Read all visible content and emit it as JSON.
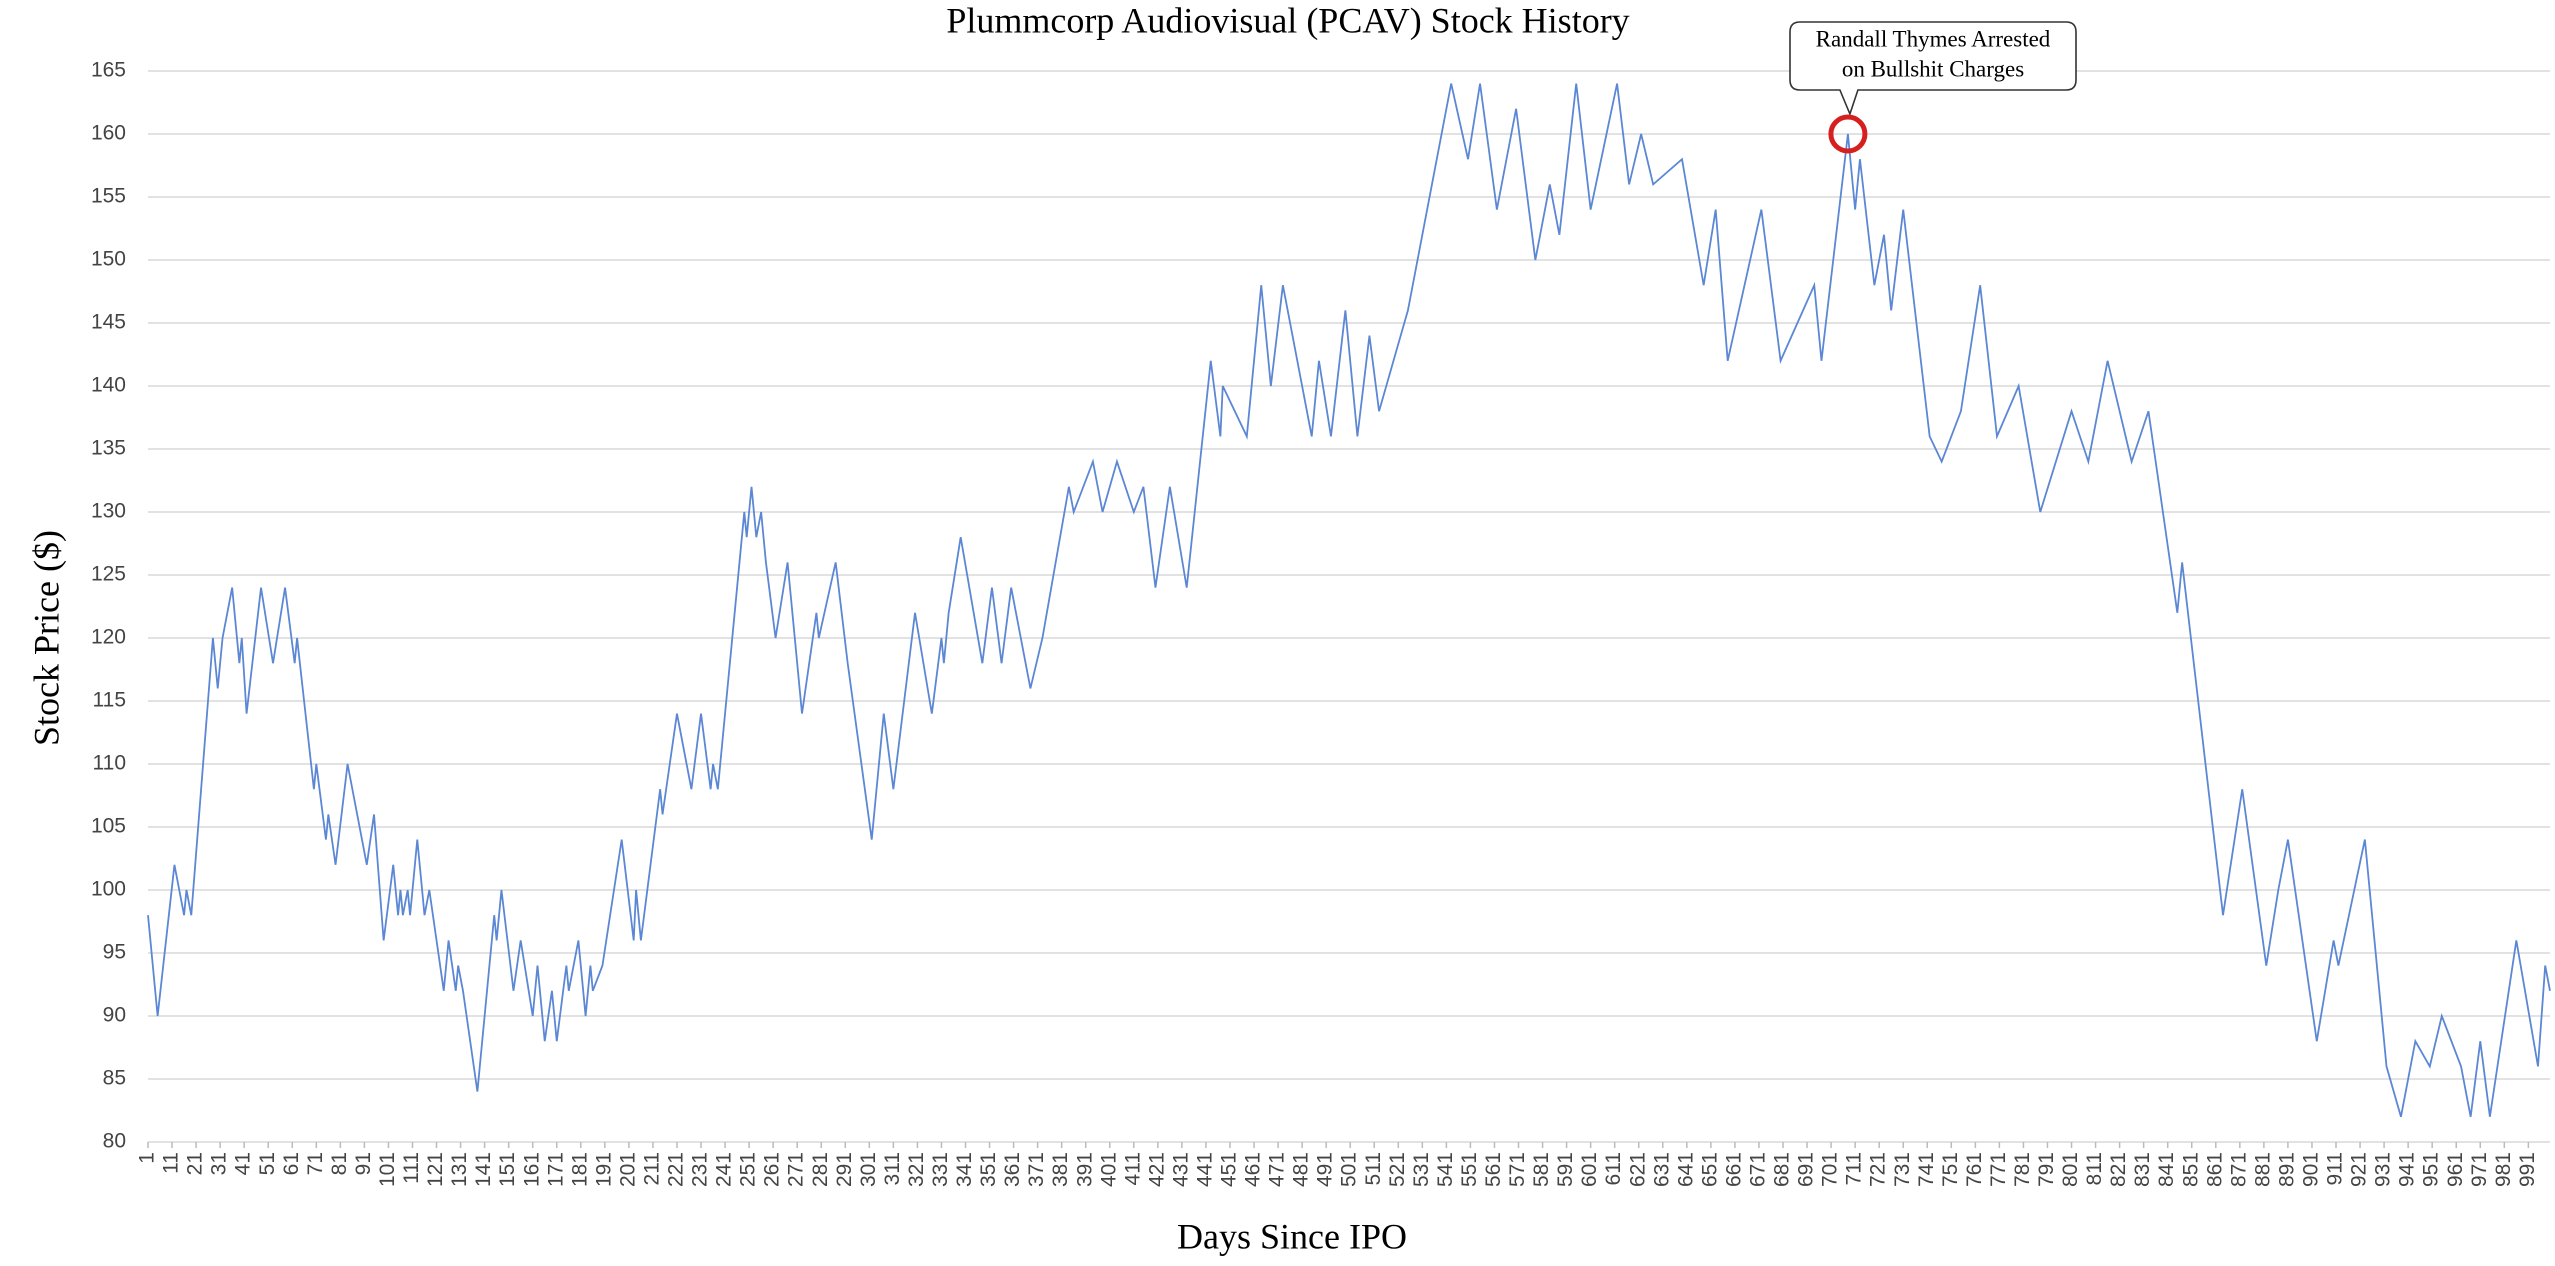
{
  "chart_data": {
    "type": "line",
    "title": "Plummcorp Audiovisual (PCAV) Stock History",
    "x_label": "Days Since IPO",
    "y_label": "Stock Price ($)",
    "series": [
      {
        "name": "PCAV",
        "color": "#5b87d4",
        "x": [
          1,
          5,
          12,
          16,
          17,
          19,
          28,
          30,
          32,
          36,
          39,
          40,
          42,
          48,
          53,
          58,
          62,
          63,
          70,
          71,
          75,
          76,
          79,
          84,
          88,
          92,
          95,
          99,
          103,
          105,
          106,
          107,
          109,
          110,
          113,
          116,
          118,
          121,
          124,
          126,
          129,
          130,
          132,
          138,
          145,
          146,
          148,
          153,
          156,
          161,
          163,
          166,
          169,
          171,
          175,
          176,
          180,
          183,
          185,
          186,
          190,
          198,
          203,
          204,
          206,
          210,
          214,
          215,
          221,
          227,
          231,
          235,
          236,
          238,
          249,
          250,
          252,
          254,
          256,
          258,
          262,
          267,
          273,
          279,
          280,
          287,
          292,
          302,
          307,
          311,
          320,
          327,
          331,
          332,
          334,
          339,
          348,
          352,
          356,
          360,
          362,
          368,
          373,
          384,
          386,
          394,
          398,
          404,
          411,
          415,
          420,
          426,
          433,
          443,
          447,
          448,
          458,
          464,
          468,
          473,
          485,
          488,
          493,
          499,
          504,
          509,
          513,
          525,
          543,
          550,
          555,
          562,
          570,
          578,
          584,
          588,
          595,
          601,
          612,
          617,
          622,
          627,
          639,
          648,
          653,
          658,
          672,
          680,
          694,
          697,
          708,
          711,
          713,
          719,
          723,
          726,
          731,
          742,
          747,
          755,
          763,
          770,
          779,
          788,
          801,
          808,
          816,
          826,
          833,
          839,
          845,
          847,
          864,
          872,
          882,
          887,
          891,
          903,
          910,
          912,
          923,
          932,
          938,
          944,
          950,
          955,
          963,
          967,
          971,
          975,
          986,
          995,
          998,
          1000
        ],
        "values": [
          98,
          90,
          102,
          98,
          100,
          98,
          120,
          116,
          120,
          124,
          118,
          120,
          114,
          124,
          118,
          124,
          118,
          120,
          108,
          110,
          104,
          106,
          102,
          110,
          106,
          102,
          106,
          96,
          102,
          98,
          100,
          98,
          100,
          98,
          104,
          98,
          100,
          96,
          92,
          96,
          92,
          94,
          92,
          84,
          98,
          96,
          100,
          92,
          96,
          90,
          94,
          88,
          92,
          88,
          94,
          92,
          96,
          90,
          94,
          92,
          94,
          104,
          96,
          100,
          96,
          102,
          108,
          106,
          114,
          108,
          114,
          108,
          110,
          108,
          130,
          128,
          132,
          128,
          130,
          126,
          120,
          126,
          114,
          122,
          120,
          126,
          118,
          104,
          114,
          108,
          122,
          114,
          120,
          118,
          122,
          128,
          118,
          124,
          118,
          124,
          122,
          116,
          120,
          132,
          130,
          134,
          130,
          134,
          130,
          132,
          124,
          132,
          124,
          142,
          136,
          140,
          136,
          148,
          140,
          148,
          136,
          142,
          136,
          146,
          136,
          144,
          138,
          146,
          164,
          158,
          164,
          154,
          162,
          150,
          156,
          152,
          164,
          154,
          164,
          156,
          160,
          156,
          158,
          148,
          154,
          142,
          154,
          142,
          148,
          142,
          160,
          154,
          158,
          148,
          152,
          146,
          154,
          136,
          134,
          138,
          148,
          136,
          140,
          130,
          138,
          134,
          142,
          134,
          138,
          130,
          122,
          126,
          98,
          108,
          94,
          100,
          104,
          88,
          96,
          94,
          104,
          86,
          82,
          88,
          86,
          90,
          86,
          82,
          88,
          82,
          96,
          86,
          94,
          92
        ]
      }
    ],
    "xlim": [
      1,
      1000
    ],
    "xticks": [
      1,
      11,
      21,
      31,
      41,
      51,
      61,
      71,
      81,
      91,
      101,
      111,
      121,
      131,
      141,
      151,
      161,
      171,
      181,
      191,
      201,
      211,
      221,
      231,
      241,
      251,
      261,
      271,
      281,
      291,
      301,
      311,
      321,
      331,
      341,
      351,
      361,
      371,
      381,
      391,
      401,
      411,
      421,
      431,
      441,
      451,
      461,
      471,
      481,
      491,
      501,
      511,
      521,
      531,
      541,
      551,
      561,
      571,
      581,
      591,
      601,
      611,
      621,
      631,
      641,
      651,
      661,
      671,
      681,
      691,
      701,
      711,
      721,
      731,
      741,
      751,
      761,
      771,
      781,
      791,
      801,
      811,
      821,
      831,
      841,
      851,
      861,
      871,
      881,
      891,
      901,
      911,
      921,
      931,
      941,
      951,
      961,
      971,
      981,
      991
    ],
    "ylim": [
      80,
      165
    ],
    "yticks": [
      80,
      85,
      90,
      95,
      100,
      105,
      110,
      115,
      120,
      125,
      130,
      135,
      140,
      145,
      150,
      155,
      160,
      165
    ],
    "grid": true,
    "annotation": {
      "lines": [
        "Randall Thymes Arrested",
        "on Bullshit Charges"
      ],
      "x": 708,
      "y": 160,
      "color": "#d62020"
    }
  }
}
